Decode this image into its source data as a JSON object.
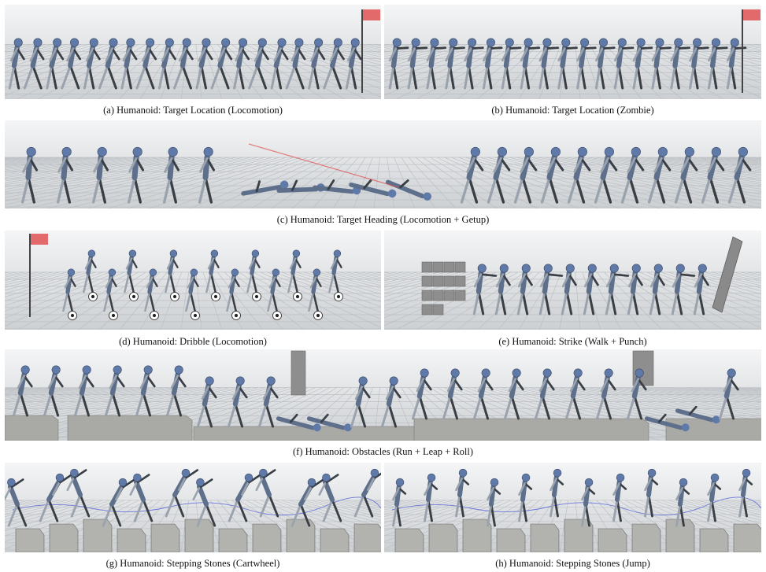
{
  "panels": [
    {
      "id": "a",
      "caption": "(a)  Humanoid: Target Location (Locomotion)",
      "scene": "locomotion",
      "flag": "right"
    },
    {
      "id": "b",
      "caption": "(b)  Humanoid: Target Location (Zombie)",
      "scene": "zombie",
      "flag": "right"
    },
    {
      "id": "c",
      "caption": "(c)  Humanoid: Target Heading (Locomotion + Getup)",
      "scene": "getup",
      "flag": "none"
    },
    {
      "id": "d",
      "caption": "(d)  Humanoid: Dribble (Locomotion)",
      "scene": "dribble",
      "flag": "left"
    },
    {
      "id": "e",
      "caption": "(e)  Humanoid: Strike (Walk + Punch)",
      "scene": "strike",
      "flag": "none"
    },
    {
      "id": "f",
      "caption": "(f)  Humanoid: Obstacles (Run + Leap + Roll)",
      "scene": "obstacles",
      "flag": "none"
    },
    {
      "id": "g",
      "caption": "(g)  Humanoid: Stepping Stones (Cartwheel)",
      "scene": "cartwheel",
      "flag": "none"
    },
    {
      "id": "h",
      "caption": "(h)  Humanoid: Stepping Stones (Jump)",
      "scene": "jump",
      "flag": "none"
    }
  ],
  "colors": {
    "floor_line": "#b8bcc0",
    "body": "#5d6f8a",
    "limb": "#3a3f46",
    "limb_light": "#9aa3ad",
    "head": "#5f79a8",
    "flag": "#e26a6a",
    "pole": "#444444",
    "ball_white": "#ffffff",
    "block": "#8e8e8e",
    "platform": "#a9a9a5",
    "target_line": "#e05050"
  }
}
